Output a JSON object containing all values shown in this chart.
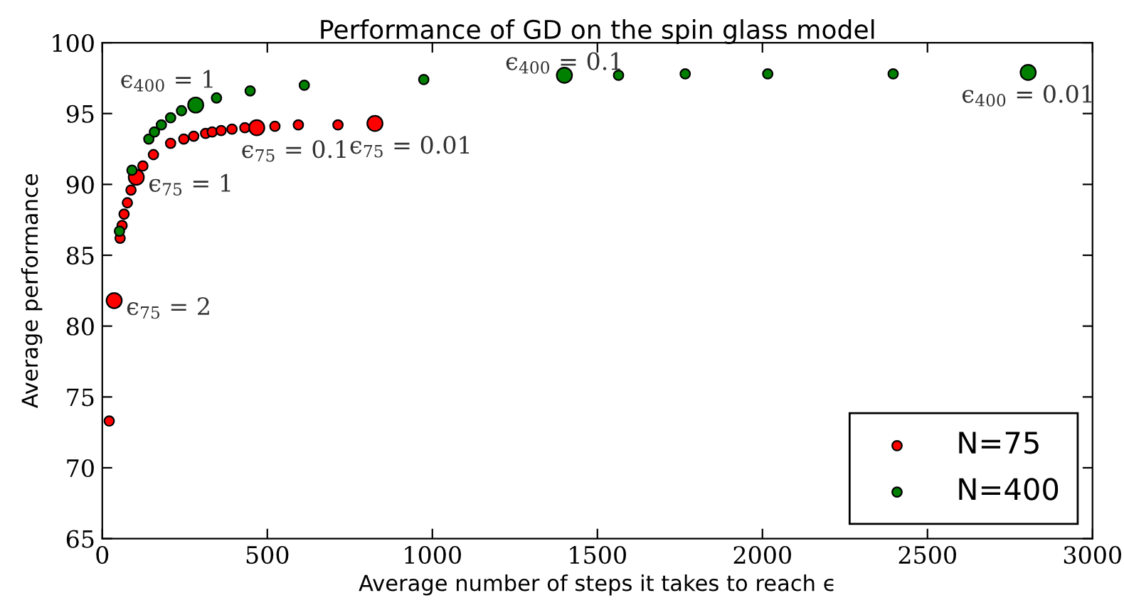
{
  "chart_data": {
    "type": "bubble",
    "title": "Performance of GD on the spin glass model",
    "xlabel": "Average number of steps it takes to reach ϵ",
    "ylabel": "Average performance",
    "xlim": [
      0,
      3000
    ],
    "xticks": [
      0,
      500,
      1000,
      1500,
      2000,
      2500,
      3000
    ],
    "ylim": [
      65,
      100
    ],
    "yticks": [
      65,
      70,
      75,
      80,
      85,
      90,
      95,
      100
    ],
    "grid": false,
    "legend": "bottom right",
    "marker": "circle",
    "series": [
      {
        "name": "N=75",
        "color": "#ff0000",
        "x": [
          21,
          36,
          54,
          60,
          66,
          76,
          87,
          103,
          123,
          155,
          207,
          247,
          277,
          313,
          333,
          360,
          393,
          432,
          468,
          523,
          594,
          714,
          826
        ],
        "values": [
          73.3,
          81.8,
          86.2,
          87.1,
          87.9,
          88.7,
          89.6,
          90.5,
          91.3,
          92.1,
          92.9,
          93.2,
          93.4,
          93.6,
          93.7,
          93.8,
          93.9,
          94.0,
          94.0,
          94.1,
          94.2,
          94.2,
          94.3
        ],
        "sizes": [
          0.4,
          1,
          0.4,
          0.4,
          0.4,
          0.4,
          0.4,
          1,
          0.4,
          0.4,
          0.4,
          0.4,
          0.4,
          0.4,
          0.4,
          0.4,
          0.4,
          0.4,
          1,
          0.4,
          0.4,
          0.4,
          1
        ]
      },
      {
        "name": "N=400",
        "color": "#008000",
        "x": [
          52,
          90,
          141,
          158,
          179,
          207,
          240,
          283,
          346,
          448,
          612,
          974,
          1400,
          1564,
          1766,
          2016,
          2396,
          2805
        ],
        "values": [
          86.7,
          91.0,
          93.2,
          93.7,
          94.2,
          94.7,
          95.2,
          95.6,
          96.1,
          96.6,
          97.0,
          97.4,
          97.7,
          97.7,
          97.8,
          97.8,
          97.8,
          97.9
        ],
        "sizes": [
          0.4,
          0.4,
          0.4,
          0.4,
          0.4,
          0.4,
          0.4,
          1,
          0.4,
          0.4,
          0.4,
          0.4,
          1,
          0.4,
          0.4,
          0.4,
          0.4,
          1
        ]
      }
    ],
    "annotations": [
      {
        "text": "ϵ$_{75}$ = 2",
        "x": 36,
        "y": 81.8
      },
      {
        "text": "ϵ$_{75}$ = 1",
        "x": 103,
        "y": 90.5
      },
      {
        "text": "ϵ$_{75}$ = 0.1",
        "x": 468,
        "y": 94.0
      },
      {
        "text": "ϵ$_{75}$ = 0.01",
        "x": 826,
        "y": 94.3
      },
      {
        "text": "ϵ$_{400}$ = 1",
        "x": 283,
        "y": 95.6
      },
      {
        "text": "ϵ$_{400}$ = 0.1",
        "x": 1400,
        "y": 97.7
      },
      {
        "text": "ϵ$_{400}$ = 0.01",
        "x": 2805,
        "y": 97.9
      }
    ]
  }
}
